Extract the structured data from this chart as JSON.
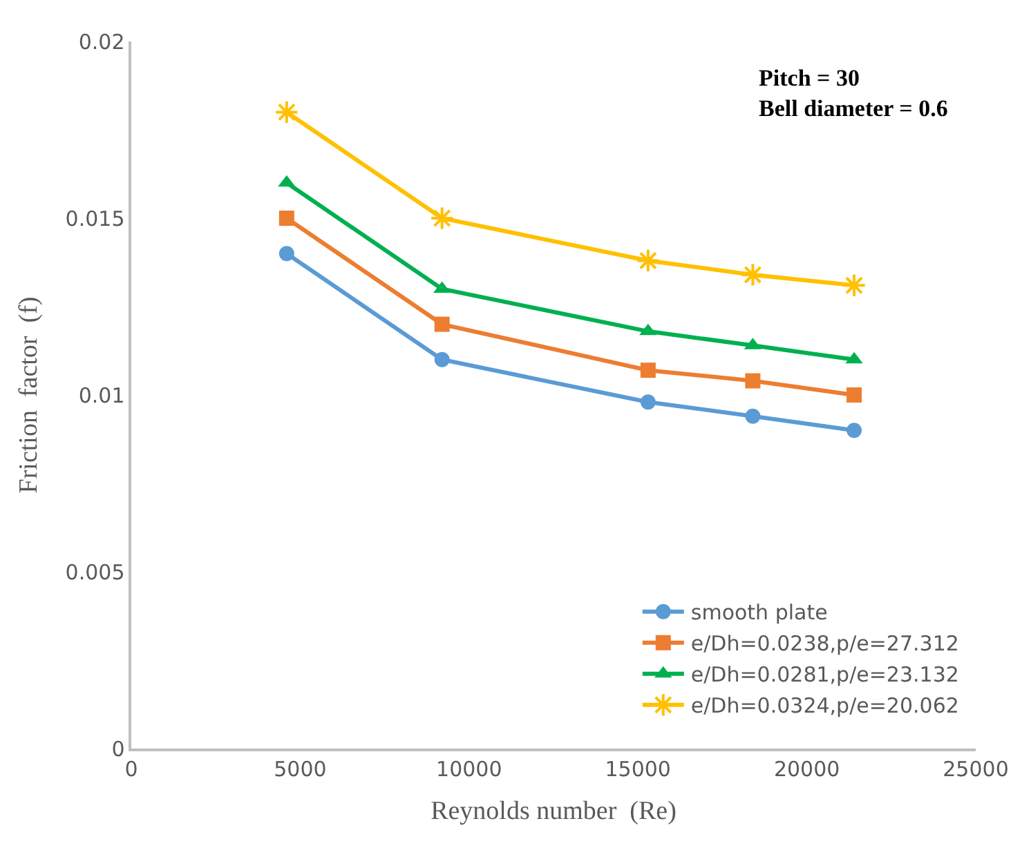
{
  "chart_data": {
    "type": "line",
    "xlabel": "Reynolds number  (Re)",
    "ylabel": "Friction  factor  (f)",
    "x": [
      4600,
      9200,
      15300,
      18400,
      21400
    ],
    "series": [
      {
        "name": "smooth plate",
        "color": "#5b9bd5",
        "marker": "circle",
        "values": [
          0.014,
          0.011,
          0.0098,
          0.0094,
          0.009
        ]
      },
      {
        "name": "e/Dh=0.0238,p/e=27.312",
        "color": "#ed7d31",
        "marker": "square",
        "values": [
          0.015,
          0.012,
          0.0107,
          0.0104,
          0.01
        ]
      },
      {
        "name": "e/Dh=0.0281,p/e=23.132",
        "color": "#00b050",
        "marker": "triangle",
        "values": [
          0.016,
          0.013,
          0.0118,
          0.0114,
          0.011
        ]
      },
      {
        "name": "e/Dh=0.0324,p/e=20.062",
        "color": "#ffc000",
        "marker": "cross",
        "values": [
          0.018,
          0.015,
          0.0138,
          0.0134,
          0.0131
        ]
      }
    ],
    "annotations": [
      "Pitch = 30",
      "Bell diameter = 0.6"
    ],
    "xlim": [
      0,
      25000
    ],
    "xticks": [
      0,
      5000,
      10000,
      15000,
      20000,
      25000
    ],
    "ylim": [
      0,
      0.02
    ],
    "yticks": [
      0,
      0.005,
      0.01,
      0.015,
      0.02
    ],
    "legend": "bottom right",
    "line_style": "solid"
  }
}
